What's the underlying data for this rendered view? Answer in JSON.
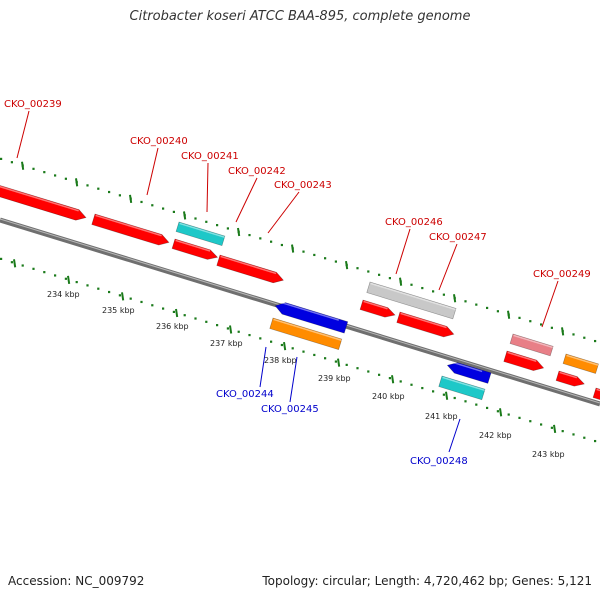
{
  "title": "Citrobacter koseri ATCC BAA-895, complete genome",
  "footer": {
    "accession": "Accession: NC_009792",
    "summary": "Topology: circular; Length: 4,720,462 bp; Genes: 5,121"
  },
  "colors": {
    "backbone": "#808080",
    "ticks": "#1a7a1a",
    "forward_label": "#cc0000",
    "reverse_label": "#0000cc",
    "feature_red": "#ff0000",
    "feature_cyan": "#1ec8c8",
    "feature_blue": "#0000e0",
    "feature_orange": "#ff8c00",
    "feature_grey": "#c8c8c8",
    "feature_pink": "#e87f87"
  },
  "scale_labels": [
    "234 kbp",
    "235 kbp",
    "236 kbp",
    "237 kbp",
    "238 kbp",
    "239 kbp",
    "240 kbp",
    "241 kbp",
    "242 kbp",
    "243 kbp"
  ],
  "gene_labels": [
    {
      "id": "CKO_00239",
      "strand": "forward"
    },
    {
      "id": "CKO_00240",
      "strand": "forward"
    },
    {
      "id": "CKO_00241",
      "strand": "forward"
    },
    {
      "id": "CKO_00242",
      "strand": "forward"
    },
    {
      "id": "CKO_00243",
      "strand": "forward"
    },
    {
      "id": "CKO_00244",
      "strand": "reverse"
    },
    {
      "id": "CKO_00245",
      "strand": "reverse"
    },
    {
      "id": "CKO_00246",
      "strand": "forward"
    },
    {
      "id": "CKO_00247",
      "strand": "forward"
    },
    {
      "id": "CKO_00248",
      "strand": "reverse"
    },
    {
      "id": "CKO_00249",
      "strand": "forward"
    }
  ]
}
